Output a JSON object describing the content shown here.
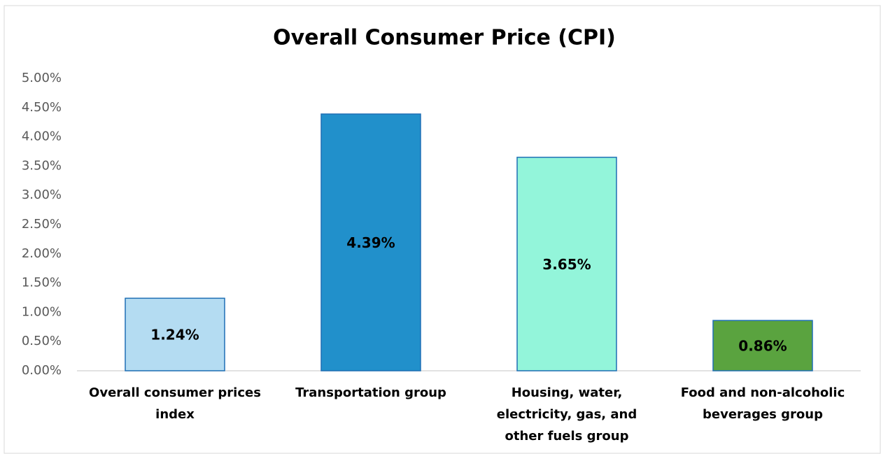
{
  "chart_data": {
    "type": "bar",
    "title": "Overall Consumer Price (CPI)",
    "categories": [
      "Overall consumer prices index",
      "Transportation group",
      "Housing, water, electricity, gas, and other fuels  group",
      "Food and non-alcoholic beverages group"
    ],
    "values": [
      1.24,
      4.39,
      3.65,
      0.86
    ],
    "value_labels": [
      "1.24%",
      "4.39%",
      "3.65%",
      "0.86%"
    ],
    "colors": [
      "#b4dcf2",
      "#2190cb",
      "#93f5da",
      "#5aa33f"
    ],
    "ylim": [
      0,
      5
    ],
    "yticks": [
      {
        "value": 0,
        "label": "0.00%"
      },
      {
        "value": 0.5,
        "label": "0.50%"
      },
      {
        "value": 1,
        "label": "1.00%"
      },
      {
        "value": 1.5,
        "label": "1.50%"
      },
      {
        "value": 2,
        "label": "2.00%"
      },
      {
        "value": 2.5,
        "label": "2.50%"
      },
      {
        "value": 3,
        "label": "3.00%"
      },
      {
        "value": 3.5,
        "label": "3.50%"
      },
      {
        "value": 4,
        "label": "4.00%"
      },
      {
        "value": 4.5,
        "label": "4.50%"
      },
      {
        "value": 5,
        "label": "5.00%"
      }
    ],
    "grid": false
  }
}
